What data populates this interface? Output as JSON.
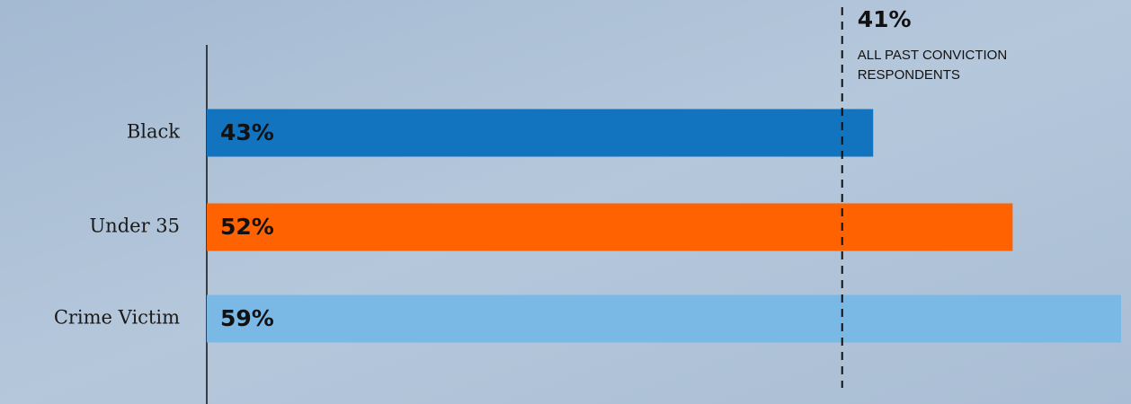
{
  "chart_data": {
    "type": "hbar",
    "categories": [
      "Black",
      "Under 35",
      "Crime Victim"
    ],
    "values": [
      43,
      52,
      59
    ],
    "value_labels": [
      "43%",
      "52%",
      "59%"
    ],
    "colors": [
      "#1273bf",
      "#ff6200",
      "#7ab8e6"
    ],
    "xlim": [
      0,
      59
    ],
    "reference": {
      "value": 41,
      "label": "41%",
      "text_lines": [
        "ALL PAST CONVICTION",
        "RESPONDENTS"
      ]
    }
  }
}
